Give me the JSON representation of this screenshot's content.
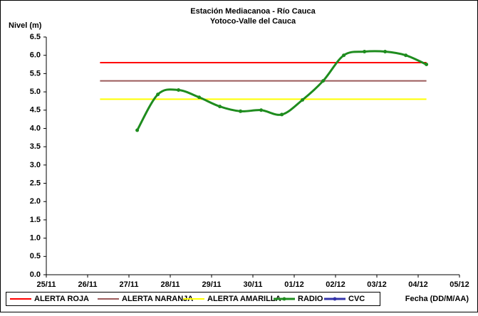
{
  "chart_data": {
    "type": "line",
    "title": "Estación Mediacanoa - Río Cauca",
    "subtitle": "Yotoco-Valle del Cauca",
    "y_label": "Nivel (m)",
    "x_label": "Fecha (DD/M/AA)",
    "xlim": [
      0,
      10
    ],
    "xticks": [
      {
        "value": 0,
        "label": "25/11"
      },
      {
        "value": 1,
        "label": "26/11"
      },
      {
        "value": 2,
        "label": "27/11"
      },
      {
        "value": 3,
        "label": "28/11"
      },
      {
        "value": 4,
        "label": "29/11"
      },
      {
        "value": 5,
        "label": "30/11"
      },
      {
        "value": 6,
        "label": "01/12"
      },
      {
        "value": 7,
        "label": "02/12"
      },
      {
        "value": 8,
        "label": "03/12"
      },
      {
        "value": 9,
        "label": "04/12"
      },
      {
        "value": 10,
        "label": "05/12"
      }
    ],
    "ylim": [
      0,
      6.5
    ],
    "yticks": [
      {
        "value": 0,
        "label": "0.0"
      },
      {
        "value": 0.5,
        "label": "0.5"
      },
      {
        "value": 1,
        "label": "1.0"
      },
      {
        "value": 1.5,
        "label": "1.5"
      },
      {
        "value": 2,
        "label": "2.0"
      },
      {
        "value": 2.5,
        "label": "2.5"
      },
      {
        "value": 3,
        "label": "3.0"
      },
      {
        "value": 3.5,
        "label": "3.5"
      },
      {
        "value": 4,
        "label": "4.0"
      },
      {
        "value": 4.5,
        "label": "4.5"
      },
      {
        "value": 5,
        "label": "5.0"
      },
      {
        "value": 5.5,
        "label": "5.5"
      },
      {
        "value": 6,
        "label": "6.0"
      },
      {
        "value": 6.5,
        "label": "6.5"
      }
    ],
    "grid": false,
    "legend": "bottom",
    "series": [
      {
        "name": "ALERTA ROJA",
        "color": "#ff0000",
        "x": [
          1.3,
          9.2
        ],
        "values": [
          5.8,
          5.8
        ]
      },
      {
        "name": "ALERTA NARANJA",
        "color": "#9b5a5a",
        "x": [
          1.3,
          9.2
        ],
        "values": [
          5.3,
          5.3
        ]
      },
      {
        "name": "ALERTA AMARILLA",
        "color": "#ffff00",
        "x": [
          1.3,
          9.2
        ],
        "values": [
          4.8,
          4.8
        ]
      },
      {
        "name": "RADIO",
        "color": "#1e8c1e",
        "marker": true,
        "x": [
          2.2,
          2.7,
          3.2,
          3.7,
          4.2,
          4.7,
          5.2,
          5.7,
          6.2,
          6.7,
          7.2,
          7.7,
          8.2,
          8.7,
          9.2
        ],
        "values": [
          3.95,
          4.93,
          5.05,
          4.85,
          4.6,
          4.47,
          4.5,
          4.38,
          4.78,
          5.3,
          6.0,
          6.1,
          6.1,
          6.0,
          5.75
        ]
      },
      {
        "name": "CVC",
        "color": "#3333aa",
        "marker": true,
        "x": [],
        "values": []
      }
    ]
  }
}
